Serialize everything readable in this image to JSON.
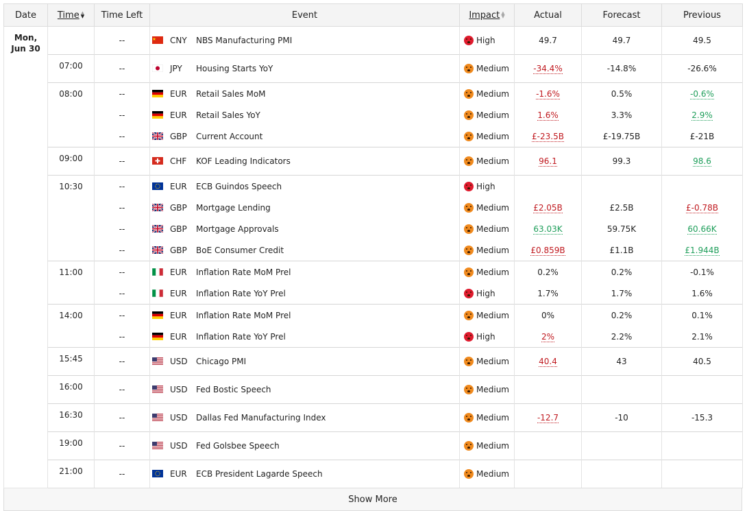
{
  "headers": {
    "date": "Date",
    "time": "Time",
    "time_left": "Time Left",
    "event": "Event",
    "impact": "Impact",
    "actual": "Actual",
    "forecast": "Forecast",
    "previous": "Previous"
  },
  "date": {
    "line1": "Mon,",
    "line2": "Jun 30"
  },
  "rows": [
    {
      "time": "",
      "left": "--",
      "flag": "cn",
      "cur": "CNY",
      "event": "NBS Manufacturing PMI",
      "impact": "High",
      "actual": "49.7",
      "actual_color": "",
      "forecast": "49.7",
      "previous": "49.5",
      "previous_color": ""
    },
    {
      "time": "07:00",
      "left": "--",
      "flag": "jp",
      "cur": "JPY",
      "event": "Housing Starts YoY",
      "impact": "Medium",
      "actual": "-34.4%",
      "actual_color": "red",
      "forecast": "-14.8%",
      "previous": "-26.6%",
      "previous_color": ""
    },
    {
      "time": "08:00",
      "left": "--",
      "flag": "de",
      "cur": "EUR",
      "event": "Retail Sales MoM",
      "impact": "Medium",
      "actual": "-1.6%",
      "actual_color": "red",
      "forecast": "0.5%",
      "previous": "-0.6%",
      "previous_color": "green"
    },
    {
      "time": "",
      "left": "--",
      "flag": "de",
      "cur": "EUR",
      "event": "Retail Sales YoY",
      "impact": "Medium",
      "actual": "1.6%",
      "actual_color": "red",
      "forecast": "3.3%",
      "previous": "2.9%",
      "previous_color": "green"
    },
    {
      "time": "",
      "left": "--",
      "flag": "gb",
      "cur": "GBP",
      "event": "Current Account",
      "impact": "Medium",
      "actual": "£-23.5B",
      "actual_color": "red",
      "forecast": "£-19.75B",
      "previous": "£-21B",
      "previous_color": ""
    },
    {
      "time": "09:00",
      "left": "--",
      "flag": "ch",
      "cur": "CHF",
      "event": "KOF Leading Indicators",
      "impact": "Medium",
      "actual": "96.1",
      "actual_color": "red",
      "forecast": "99.3",
      "previous": "98.6",
      "previous_color": "green"
    },
    {
      "time": "10:30",
      "left": "--",
      "flag": "eu",
      "cur": "EUR",
      "event": "ECB Guindos Speech",
      "impact": "High",
      "actual": "",
      "actual_color": "",
      "forecast": "",
      "previous": "",
      "previous_color": ""
    },
    {
      "time": "",
      "left": "--",
      "flag": "gb",
      "cur": "GBP",
      "event": "Mortgage Lending",
      "impact": "Medium",
      "actual": "£2.05B",
      "actual_color": "red",
      "forecast": "£2.5B",
      "previous": "£-0.78B",
      "previous_color": "red"
    },
    {
      "time": "",
      "left": "--",
      "flag": "gb",
      "cur": "GBP",
      "event": "Mortgage Approvals",
      "impact": "Medium",
      "actual": "63.03K",
      "actual_color": "green",
      "forecast": "59.75K",
      "previous": "60.66K",
      "previous_color": "green"
    },
    {
      "time": "",
      "left": "--",
      "flag": "gb",
      "cur": "GBP",
      "event": "BoE Consumer Credit",
      "impact": "Medium",
      "actual": "£0.859B",
      "actual_color": "red",
      "forecast": "£1.1B",
      "previous": "£1.944B",
      "previous_color": "green"
    },
    {
      "time": "11:00",
      "left": "--",
      "flag": "it",
      "cur": "EUR",
      "event": "Inflation Rate MoM Prel",
      "impact": "Medium",
      "actual": "0.2%",
      "actual_color": "",
      "forecast": "0.2%",
      "previous": "-0.1%",
      "previous_color": ""
    },
    {
      "time": "",
      "left": "--",
      "flag": "it",
      "cur": "EUR",
      "event": "Inflation Rate YoY Prel",
      "impact": "High",
      "actual": "1.7%",
      "actual_color": "",
      "forecast": "1.7%",
      "previous": "1.6%",
      "previous_color": ""
    },
    {
      "time": "14:00",
      "left": "--",
      "flag": "de",
      "cur": "EUR",
      "event": "Inflation Rate MoM Prel",
      "impact": "Medium",
      "actual": "0%",
      "actual_color": "",
      "forecast": "0.2%",
      "previous": "0.1%",
      "previous_color": ""
    },
    {
      "time": "",
      "left": "--",
      "flag": "de",
      "cur": "EUR",
      "event": "Inflation Rate YoY Prel",
      "impact": "High",
      "actual": "2%",
      "actual_color": "red",
      "forecast": "2.2%",
      "previous": "2.1%",
      "previous_color": ""
    },
    {
      "time": "15:45",
      "left": "--",
      "flag": "us",
      "cur": "USD",
      "event": "Chicago PMI",
      "impact": "Medium",
      "actual": "40.4",
      "actual_color": "red",
      "forecast": "43",
      "previous": "40.5",
      "previous_color": ""
    },
    {
      "time": "16:00",
      "left": "--",
      "flag": "us",
      "cur": "USD",
      "event": "Fed Bostic Speech",
      "impact": "Medium",
      "actual": "",
      "actual_color": "",
      "forecast": "",
      "previous": "",
      "previous_color": ""
    },
    {
      "time": "16:30",
      "left": "--",
      "flag": "us",
      "cur": "USD",
      "event": "Dallas Fed Manufacturing Index",
      "impact": "Medium",
      "actual": "-12.7",
      "actual_color": "red",
      "forecast": "-10",
      "previous": "-15.3",
      "previous_color": ""
    },
    {
      "time": "19:00",
      "left": "--",
      "flag": "us",
      "cur": "USD",
      "event": "Fed Golsbee Speech",
      "impact": "Medium",
      "actual": "",
      "actual_color": "",
      "forecast": "",
      "previous": "",
      "previous_color": ""
    },
    {
      "time": "21:00",
      "left": "--",
      "flag": "eu",
      "cur": "EUR",
      "event": "ECB President Lagarde Speech",
      "impact": "Medium",
      "actual": "",
      "actual_color": "",
      "forecast": "",
      "previous": "",
      "previous_color": ""
    }
  ],
  "groups": [
    1,
    1,
    3,
    1,
    4,
    2,
    2,
    1,
    1,
    1,
    1,
    1
  ],
  "show_more": "Show More",
  "colors": {
    "high": "#e01b2e",
    "medium": "#f08a1e",
    "red": "#c0191f",
    "green": "#1e9e5a"
  }
}
